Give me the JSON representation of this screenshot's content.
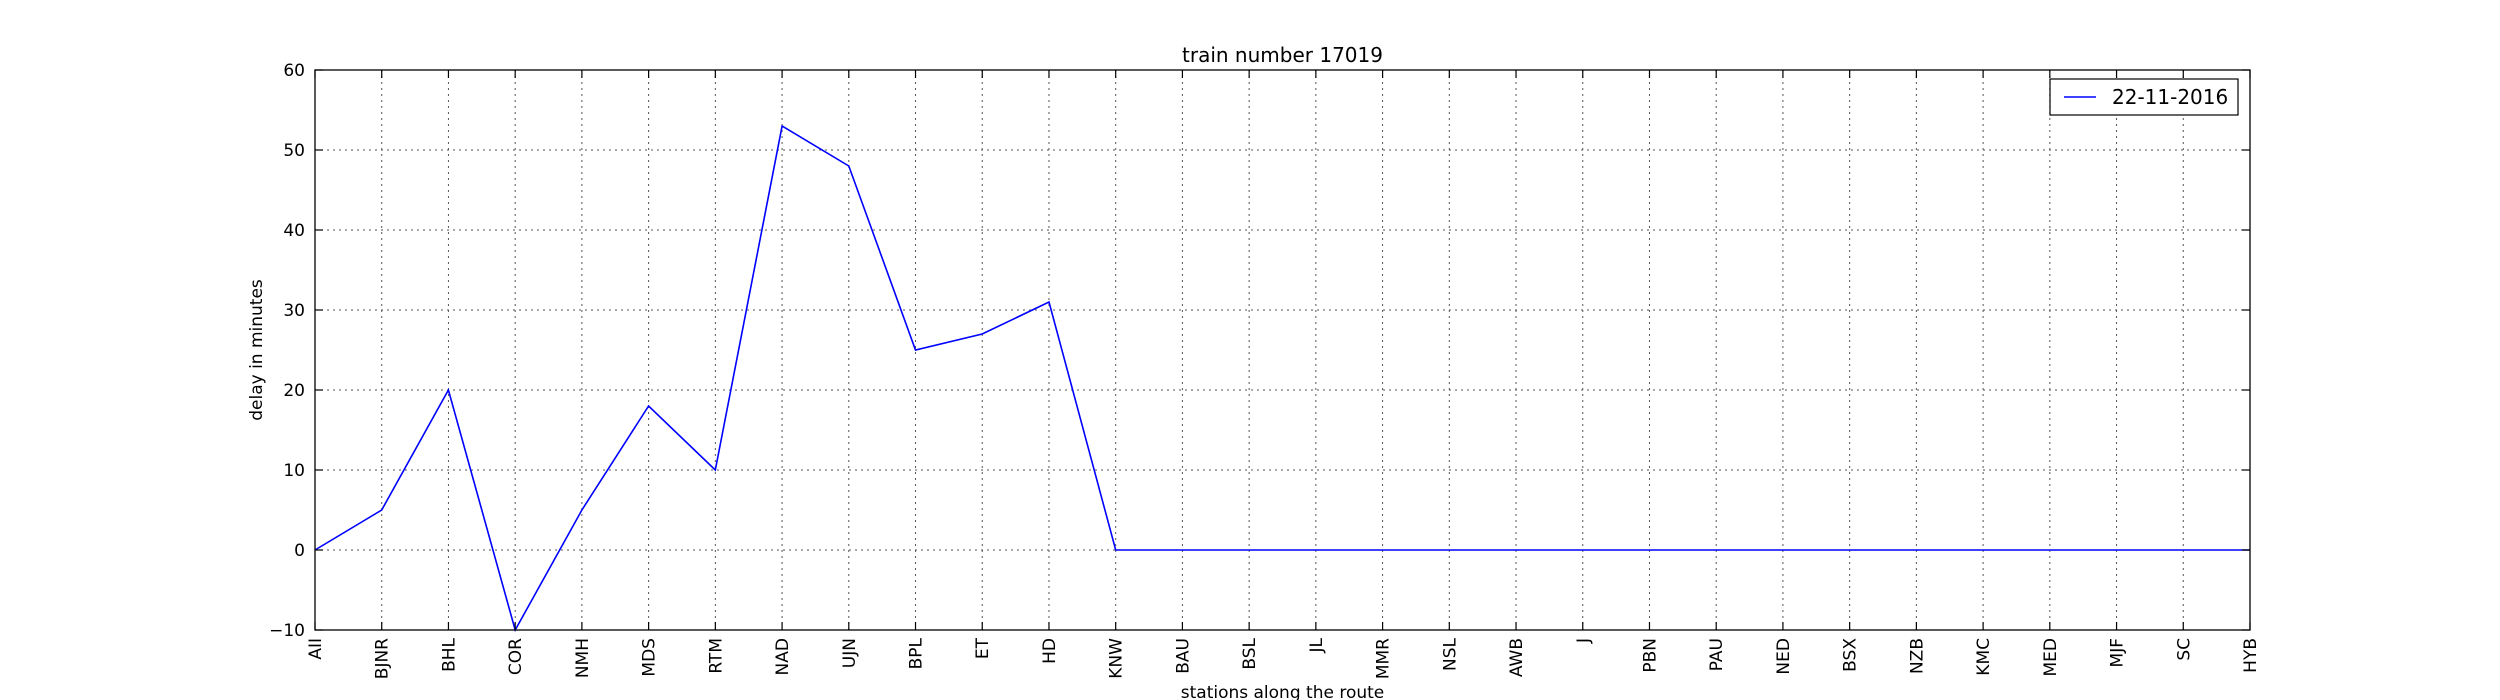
{
  "chart_data": {
    "type": "line",
    "title": "train number 17019",
    "xlabel": "stations along the route",
    "ylabel": "delay in minutes",
    "categories": [
      "AII",
      "BJNR",
      "BHL",
      "COR",
      "NMH",
      "MDS",
      "RTM",
      "NAD",
      "UJN",
      "BPL",
      "ET",
      "HD",
      "KNW",
      "BAU",
      "BSL",
      "JL",
      "MMR",
      "NSL",
      "AWB",
      "J",
      "PBN",
      "PAU",
      "NED",
      "BSX",
      "NZB",
      "KMC",
      "MED",
      "MJF",
      "SC",
      "HYB"
    ],
    "series": [
      {
        "name": "22-11-2016",
        "color": "#0000ff",
        "values": [
          0,
          5,
          20,
          -10,
          5,
          18,
          10,
          53,
          48,
          25,
          27,
          31,
          0,
          0,
          0,
          0,
          0,
          0,
          0,
          0,
          0,
          0,
          0,
          0,
          0,
          0,
          0,
          0,
          0,
          0
        ]
      }
    ],
    "ylim": [
      -10,
      60
    ],
    "yticks": [
      -10,
      0,
      10,
      20,
      30,
      40,
      50,
      60
    ],
    "grid": true,
    "legend_position": "top-right"
  }
}
